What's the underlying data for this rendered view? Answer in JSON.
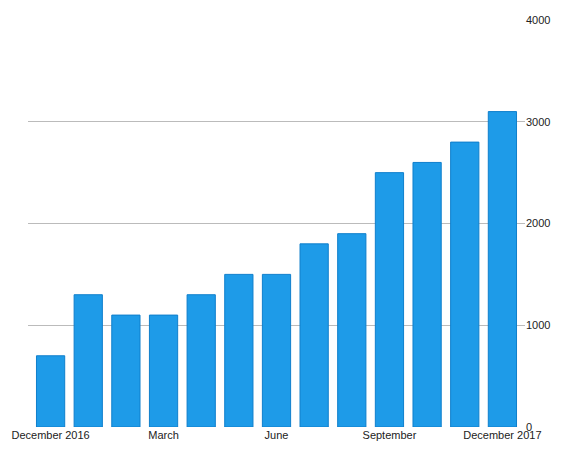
{
  "chart_data": {
    "type": "bar",
    "categories": [
      "December 2016",
      null,
      null,
      "March",
      null,
      null,
      "June",
      null,
      null,
      "September",
      null,
      null,
      "December 2017"
    ],
    "values": [
      700,
      1300,
      1100,
      1100,
      1300,
      1500,
      1500,
      1800,
      1900,
      2500,
      2600,
      2800,
      3100
    ],
    "color": "#1e9be8",
    "ylim": [
      0,
      4000
    ],
    "yticks": [
      0,
      1000,
      2000,
      3000,
      4000
    ],
    "grid": true
  }
}
